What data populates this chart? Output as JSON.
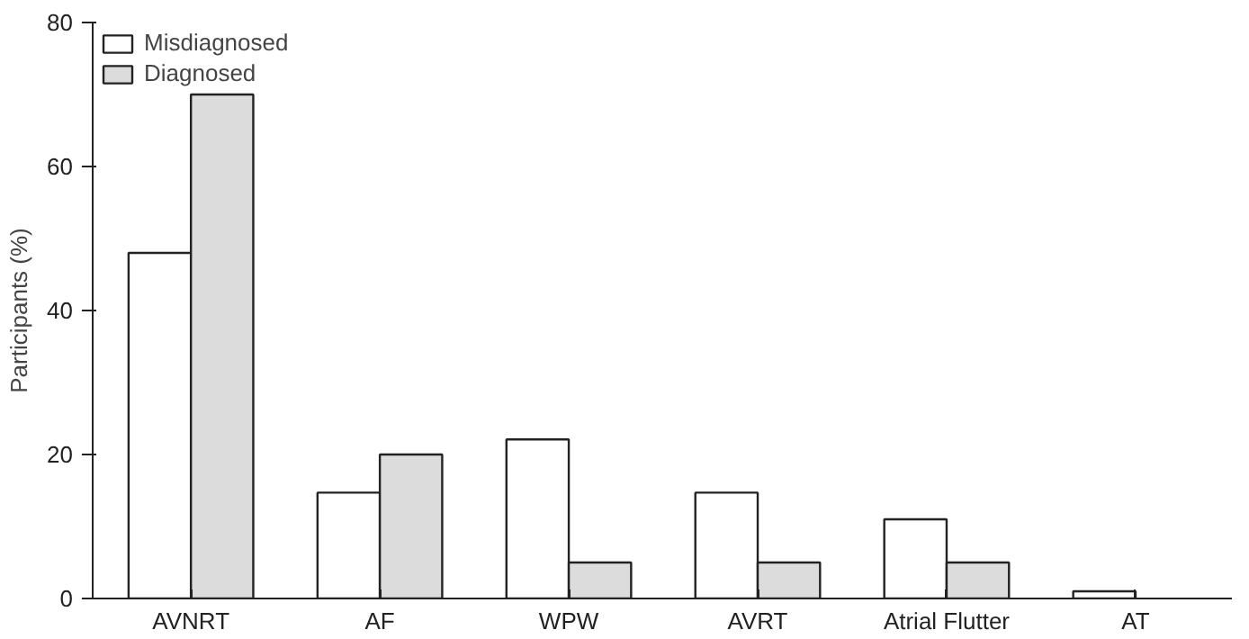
{
  "chart_data": {
    "type": "bar",
    "ylabel": "Participants (%)",
    "categories": [
      "AVNRT",
      "AF",
      "WPW",
      "AVRT",
      "Atrial Flutter",
      "AT"
    ],
    "series": [
      {
        "name": "Misdiagnosed",
        "color": "#ffffff",
        "values": [
          48,
          14.7,
          22.1,
          14.7,
          11,
          1
        ]
      },
      {
        "name": "Diagnosed",
        "color": "#dcdcdc",
        "values": [
          70,
          20,
          5,
          5,
          5,
          null
        ]
      }
    ],
    "ylim": [
      0,
      80
    ],
    "yticks": [
      0,
      20,
      40,
      60,
      80
    ],
    "grid": false,
    "legend": "top left"
  }
}
